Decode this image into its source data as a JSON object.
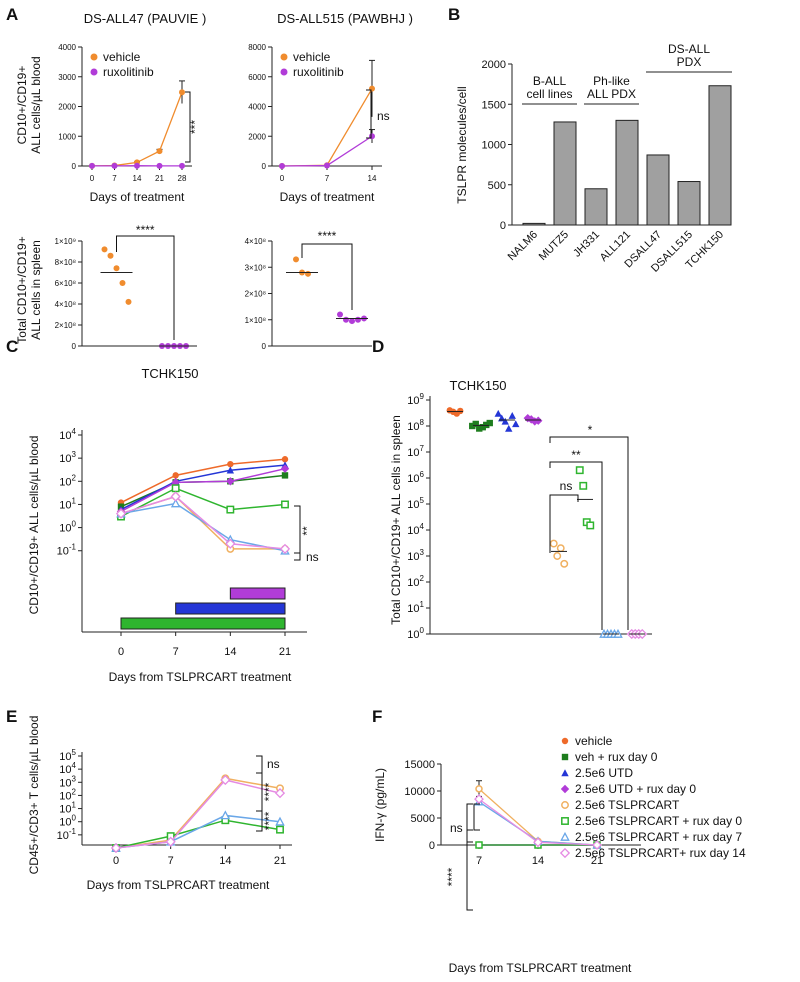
{
  "panel_labels": [
    "A",
    "B",
    "C",
    "D",
    "E",
    "F"
  ],
  "colors": {
    "orange": "#f08c2e",
    "purple": "#b13cd8",
    "green_dark": "#1e7d1e",
    "green": "#2fb52f",
    "blue": "#2436d6",
    "light_orange": "#f0b060",
    "light_blue": "#6aa7e8",
    "pink": "#e58be3",
    "gray_bar": "#a0a0a0",
    "orange_red": "#ee6a2a"
  },
  "chart_data": [
    {
      "id": "A1",
      "type": "line",
      "title": "DS-ALL47 (PAUVIE )",
      "xlabel": "Days of treatment",
      "ylabel": "CD10+/CD19+\nALL cells/µL blood",
      "x": [
        0,
        7,
        14,
        21,
        28
      ],
      "yticks": [
        0,
        1000,
        2000,
        3000,
        4000
      ],
      "ylim": [
        0,
        4000
      ],
      "series": [
        {
          "name": "vehicle",
          "color_key": "orange",
          "values": [
            5,
            15,
            120,
            500,
            2480
          ],
          "err": [
            0,
            0,
            20,
            60,
            380
          ]
        },
        {
          "name": "ruxolitinib",
          "color_key": "purple",
          "values": [
            5,
            5,
            10,
            5,
            5
          ],
          "err": [
            0,
            0,
            0,
            0,
            0
          ]
        }
      ],
      "legend": [
        "vehicle",
        "ruxolitinib"
      ],
      "significance": "***"
    },
    {
      "id": "A2",
      "type": "line",
      "title": "DS-ALL515 (PAWBHJ )",
      "xlabel": "Days of treatment",
      "x": [
        0,
        7,
        14
      ],
      "yticks": [
        0,
        2000,
        4000,
        6000,
        8000
      ],
      "ylim": [
        0,
        8000
      ],
      "series": [
        {
          "name": "vehicle",
          "color_key": "orange",
          "values": [
            0,
            50,
            5200
          ],
          "err": [
            0,
            0,
            1900
          ]
        },
        {
          "name": "ruxolitinib",
          "color_key": "purple",
          "values": [
            0,
            30,
            2000
          ],
          "err": [
            0,
            0,
            450
          ]
        }
      ],
      "legend": [
        "vehicle",
        "ruxolitinib"
      ],
      "significance": "ns"
    },
    {
      "id": "A3",
      "type": "scatter",
      "ylabel": "Total CD10+/CD19+\nALL cells in spleen",
      "yticks": [
        "0",
        "2×10⁸",
        "4×10⁸",
        "6×10⁸",
        "8×10⁸",
        "1×10⁹"
      ],
      "ylim": [
        0,
        1000000000
      ],
      "groups": [
        {
          "name": "vehicle",
          "color_key": "orange",
          "values": [
            920000000,
            860000000,
            740000000,
            600000000,
            420000000
          ],
          "mean": 700000000
        },
        {
          "name": "ruxolitinib",
          "color_key": "purple",
          "values": [
            0,
            0,
            0,
            0,
            0
          ],
          "mean": 0
        }
      ],
      "significance": "****"
    },
    {
      "id": "A4",
      "type": "scatter",
      "yticks": [
        "0",
        "1×10⁸",
        "2×10⁸",
        "3×10⁸",
        "4×10⁸"
      ],
      "ylim": [
        0,
        400000000
      ],
      "groups": [
        {
          "name": "vehicle",
          "color_key": "orange",
          "values": [
            330000000,
            280000000,
            275000000
          ],
          "mean": 280000000
        },
        {
          "name": "ruxolitinib",
          "color_key": "purple",
          "values": [
            120000000,
            100000000,
            95000000,
            100000000,
            105000000
          ],
          "mean": 105000000
        }
      ],
      "significance": "****"
    },
    {
      "id": "B",
      "type": "bar",
      "ylabel": "TSLPR molecules/cell",
      "categories": [
        "NALM6",
        "MUTZ5",
        "JH331",
        "ALL121",
        "DSALL47",
        "DSALL515",
        "TCHK150"
      ],
      "values": [
        20,
        1280,
        450,
        1300,
        870,
        540,
        1730
      ],
      "yticks": [
        0,
        500,
        1000,
        1500,
        2000
      ],
      "ylim": [
        0,
        2000
      ],
      "groups": [
        {
          "label": "B-ALL\ncell lines",
          "from": 0,
          "to": 1
        },
        {
          "label": "Ph-like\nALL PDX",
          "from": 2,
          "to": 3
        },
        {
          "label": "DS-ALL\nPDX",
          "from": 4,
          "to": 6
        }
      ]
    },
    {
      "id": "C",
      "type": "line",
      "title": "TCHK150",
      "xlabel": "Days from TSLPRCART treatment",
      "ylabel": "CD10+/CD19+ ALL cells/µL blood",
      "x": [
        0,
        7,
        14,
        21
      ],
      "ytick_exponents": [
        -1,
        0,
        1,
        2,
        3,
        4
      ],
      "series": [
        {
          "name": "vehicle",
          "color_key": "orange_red",
          "values": [
            12,
            180,
            550,
            900
          ]
        },
        {
          "name": "veh + rux day 0",
          "color_key": "green_dark",
          "values": [
            8,
            90,
            100,
            180
          ]
        },
        {
          "name": "2.5e6 UTD",
          "color_key": "blue",
          "values": [
            6,
            100,
            300,
            500
          ]
        },
        {
          "name": "2.5e6 UTD + rux day 0",
          "color_key": "purple",
          "values": [
            5,
            90,
            100,
            350
          ]
        },
        {
          "name": "2.5e6 TSLPRCART",
          "color_key": "light_orange",
          "values": [
            4,
            22,
            0.12,
            0.12
          ]
        },
        {
          "name": "2.5e6 TSLPRCART + rux day 0",
          "color_key": "green",
          "values": [
            3,
            50,
            6,
            10
          ]
        },
        {
          "name": "2.5e6 TSLPRCART + rux day 7",
          "color_key": "light_blue",
          "values": [
            4,
            11,
            0.3,
            0.1
          ]
        },
        {
          "name": "2.5e6 TSLPRCART+ rux day 14",
          "color_key": "pink",
          "values": [
            4,
            22,
            0.2,
            0.12
          ]
        }
      ],
      "rux_bars": [
        {
          "color_key": "purple",
          "from": 14,
          "to": 21
        },
        {
          "color_key": "blue",
          "from": 7,
          "to": 21
        },
        {
          "color_key": "green",
          "from": 0,
          "to": 21
        }
      ],
      "significance": [
        "**",
        "ns"
      ]
    },
    {
      "id": "D",
      "type": "scatter",
      "title": "TCHK150",
      "ylabel": "Total CD10+/CD19+ ALL cells in spleen",
      "ytick_exponents": [
        0,
        1,
        2,
        3,
        4,
        5,
        6,
        7,
        8,
        9
      ],
      "groups": [
        {
          "name": "vehicle",
          "color_key": "orange_red",
          "values": [
            400000000,
            350000000,
            300000000,
            380000000
          ],
          "mean": 360000000
        },
        {
          "name": "veh + rux day 0",
          "color_key": "green_dark",
          "values": [
            100000000,
            120000000,
            80000000,
            90000000,
            110000000,
            130000000
          ],
          "mean": 105000000
        },
        {
          "name": "2.5e6 UTD",
          "color_key": "blue",
          "values": [
            300000000,
            200000000,
            150000000,
            80000000,
            250000000,
            120000000
          ],
          "mean": 170000000
        },
        {
          "name": "2.5e6 UTD + rux day 0",
          "color_key": "purple",
          "values": [
            200000000,
            180000000,
            150000000,
            160000000
          ],
          "mean": 170000000
        },
        {
          "name": "2.5e6 TSLPRCART",
          "color_key": "light_orange",
          "values": [
            3000,
            1000,
            2000,
            500
          ],
          "mean": 1500
        },
        {
          "name": "2.5e6 TSLPRCART + rux day 0",
          "color_key": "green",
          "values": [
            2000000,
            500000,
            20000,
            15000
          ],
          "mean": 150000
        },
        {
          "name": "2.5e6 TSLPRCART + rux day 7",
          "color_key": "light_blue",
          "values": [
            1,
            1,
            1,
            1,
            1
          ],
          "mean": 1
        },
        {
          "name": "2.5e6 TSLPRCART+ rux day 14",
          "color_key": "pink",
          "values": [
            1,
            1,
            1,
            1
          ],
          "mean": 1
        }
      ],
      "significance": [
        "*",
        "**",
        "ns"
      ]
    },
    {
      "id": "E",
      "type": "line",
      "xlabel": "Days from TSLPRCART treatment",
      "ylabel": "CD45+/CD3+ T cells/µL blood",
      "x": [
        0,
        7,
        14,
        21
      ],
      "ytick_exponents": [
        -1,
        0,
        1,
        2,
        3,
        4,
        5
      ],
      "series": [
        {
          "name": "2.5e6 TSLPRCART",
          "color_key": "light_orange",
          "values": [
            0.01,
            0.04,
            2000,
            350
          ]
        },
        {
          "name": "2.5e6 TSLPRCART + rux day 0",
          "color_key": "green",
          "values": [
            0.01,
            0.08,
            1.3,
            0.25
          ]
        },
        {
          "name": "2.5e6 TSLPRCART + rux day 7",
          "color_key": "light_blue",
          "values": [
            0.01,
            0.03,
            3,
            1
          ]
        },
        {
          "name": "2.5e6 TSLPRCART+ rux day 14",
          "color_key": "pink",
          "values": [
            0.01,
            0.03,
            1500,
            150
          ]
        }
      ],
      "significance": [
        "ns",
        "****",
        "****"
      ]
    },
    {
      "id": "F",
      "type": "line",
      "xlabel": "Days from TSLPRCART treatment",
      "ylabel": "IFN-γ (pg/mL)",
      "x": [
        7,
        14,
        21
      ],
      "yticks": [
        0,
        5000,
        10000,
        15000
      ],
      "ylim": [
        0,
        15000
      ],
      "series": [
        {
          "name": "vehicle",
          "color_key": "orange_red",
          "values": [
            0,
            0,
            0
          ]
        },
        {
          "name": "veh + rux day 0",
          "color_key": "green_dark",
          "values": [
            0,
            0,
            0
          ]
        },
        {
          "name": "2.5e6 UTD",
          "color_key": "blue",
          "values": [
            0,
            0,
            0
          ]
        },
        {
          "name": "2.5e6 UTD + rux day 0",
          "color_key": "purple",
          "values": [
            0,
            0,
            0
          ]
        },
        {
          "name": "2.5e6 TSLPRCART",
          "color_key": "light_orange",
          "values": [
            10400,
            700,
            0
          ],
          "err": [
            1500,
            0,
            0
          ]
        },
        {
          "name": "2.5e6 TSLPRCART + rux day 0",
          "color_key": "green",
          "values": [
            0,
            0,
            0
          ]
        },
        {
          "name": "2.5e6 TSLPRCART + rux day 7",
          "color_key": "light_blue",
          "values": [
            8000,
            700,
            0
          ],
          "err": [
            700,
            0,
            0
          ]
        },
        {
          "name": "2.5e6 TSLPRCART+ rux day 14",
          "color_key": "pink",
          "values": [
            8500,
            500,
            0
          ],
          "err": [
            500,
            0,
            0
          ]
        }
      ],
      "legend": [
        "vehicle",
        "veh + rux day 0",
        "2.5e6 UTD",
        "2.5e6 UTD + rux day 0",
        "2.5e6 TSLPRCART",
        "2.5e6 TSLPRCART + rux day 0",
        "2.5e6 TSLPRCART + rux day 7",
        "2.5e6 TSLPRCART+ rux day 14"
      ],
      "significance": [
        "ns",
        "****"
      ]
    }
  ]
}
